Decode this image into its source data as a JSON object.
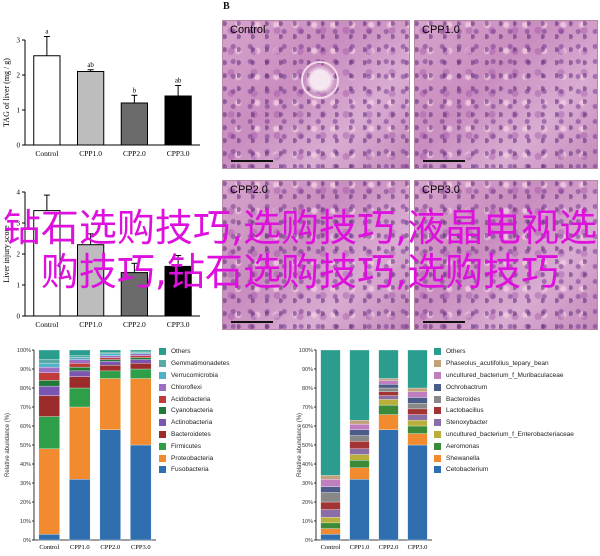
{
  "panel_labels": {
    "b": "B"
  },
  "micro_titles": [
    "Control",
    "CPP1.0",
    "CPP2.0",
    "CPP3.0"
  ],
  "overlay_text": "钻石选购技巧,选购技巧,液晶电视选购技巧,钻石选购技巧,选购技巧",
  "colors": {
    "overlay": "#dd10dd",
    "taxa": {
      "Others": "#2a9d8f",
      "Gemmatimonadetes": "#5aa9a4",
      "Verrucomicrobia": "#4fb3c8",
      "Chloroflexi": "#9d6ec4",
      "Acidobacteria": "#c23b3b",
      "Cyanobacteria": "#1f7a3a",
      "Actinobacteria": "#7a56b0",
      "Bacteroidetes": "#9b2c2c",
      "Firmicutes": "#2e9e48",
      "Proteobacteria": "#f28a30",
      "Fusobacteria": "#2f6fb0",
      "Phascolarctobacterium": "#36a08d",
      "Phaseolus acutifolius tepary bean": "#c3a17a",
      "uncultured Muribaculaceae": "#bf7fbf",
      "Ochrobactrum": "#4c5c8a",
      "Lactobacillus": "#a33434",
      "Stenoxybacter": "#8a6ea8",
      "uncultured Enterobacteriaceae": "#b8b03a",
      "Aeromonas": "#3a8a3a",
      "Shewanella": "#f28a30",
      "Cetobacterium": "#2f6fb0"
    }
  },
  "chart_data": [
    {
      "type": "bar",
      "panel": "A-top",
      "ylabel": "TAG of liver (mg / g)",
      "categories": [
        "Control",
        "CPP1.0",
        "CPP2.0",
        "CPP3.0"
      ],
      "values": [
        2.55,
        2.1,
        1.2,
        1.4
      ],
      "errors": [
        0.55,
        0.05,
        0.22,
        0.3
      ],
      "sig_labels": [
        "a",
        "ab",
        "b",
        "ab"
      ],
      "bar_fills": [
        "#ffffff",
        "#bdbdbd",
        "#6b6b6b",
        "#000000"
      ],
      "ylim": [
        0,
        3
      ],
      "yticks": [
        "0",
        "1",
        "2",
        "3"
      ]
    },
    {
      "type": "bar",
      "panel": "A-bottom",
      "ylabel": "Liver injury score",
      "categories": [
        "Control",
        "CPP1.0",
        "CPP2.0",
        "CPP3.0"
      ],
      "values": [
        3.4,
        2.3,
        1.4,
        1.6
      ],
      "errors": [
        0.5,
        0.35,
        0.3,
        0.35
      ],
      "bar_fills": [
        "#ffffff",
        "#bdbdbd",
        "#6b6b6b",
        "#000000"
      ],
      "ylim": [
        0,
        4
      ],
      "yticks": [
        "0",
        "1",
        "2",
        "3",
        "4"
      ]
    },
    {
      "type": "bar",
      "stacked": true,
      "panel": "C-phylum",
      "ylabel": "Relative abundance (%)",
      "categories": [
        "Control",
        "CPP1.0",
        "CPP2.0",
        "CPP3.0"
      ],
      "ylim": [
        0,
        100
      ],
      "yticks": [
        "0%",
        "10%",
        "20%",
        "30%",
        "40%",
        "50%",
        "60%",
        "70%",
        "80%",
        "90%",
        "100%"
      ],
      "series": [
        {
          "name": "Fusobacteria",
          "values": [
            3,
            32,
            58,
            50
          ]
        },
        {
          "name": "Proteobacteria",
          "values": [
            45,
            38,
            27,
            35
          ]
        },
        {
          "name": "Firmicutes",
          "values": [
            17,
            10,
            4,
            5
          ]
        },
        {
          "name": "Bacteroidetes",
          "values": [
            11,
            6,
            3,
            3
          ]
        },
        {
          "name": "Actinobacteria",
          "values": [
            5,
            3,
            2,
            2
          ]
        },
        {
          "name": "Cyanobacteria",
          "values": [
            3,
            2,
            1,
            1
          ]
        },
        {
          "name": "Acidobacteria",
          "values": [
            4,
            2,
            1,
            1
          ]
        },
        {
          "name": "Chloroflexi",
          "values": [
            3,
            2,
            1,
            1
          ]
        },
        {
          "name": "Verrucomicrobia",
          "values": [
            2,
            1,
            1,
            0.5
          ]
        },
        {
          "name": "Gemmatimonadetes",
          "values": [
            2,
            1,
            0.5,
            0.5
          ]
        },
        {
          "name": "Others",
          "values": [
            5,
            3,
            1.5,
            1
          ]
        }
      ]
    },
    {
      "type": "bar",
      "stacked": true,
      "panel": "C-genus",
      "ylabel": "Relative abundance (%)",
      "categories": [
        "Control",
        "CPP1.0",
        "CPP2.0",
        "CPP3.0"
      ],
      "ylim": [
        0,
        100
      ],
      "yticks": [
        "0%",
        "10%",
        "20%",
        "30%",
        "40%",
        "50%",
        "60%",
        "70%",
        "80%",
        "90%",
        "100%"
      ],
      "series": [
        {
          "name": "Cetobacterium",
          "values": [
            3,
            32,
            58,
            50
          ]
        },
        {
          "name": "Shewanella",
          "values": [
            3,
            6,
            8,
            6
          ]
        },
        {
          "name": "Aeromonas",
          "values": [
            3,
            4,
            5,
            4
          ]
        },
        {
          "name": "uncultured_bacterium_f_Enterobacteriaceae",
          "values": [
            3,
            3,
            3,
            3
          ]
        },
        {
          "name": "Stenoxybacter",
          "values": [
            4,
            3,
            2,
            3
          ]
        },
        {
          "name": "Lactobacillus",
          "values": [
            4,
            4,
            2,
            3
          ]
        },
        {
          "name": "Bacteroides",
          "values": [
            5,
            3,
            2,
            3
          ]
        },
        {
          "name": "Ochrobactrum",
          "values": [
            3,
            3,
            2,
            3
          ]
        },
        {
          "name": "uncultured_bacterium_f_Muribaculaceae",
          "values": [
            4,
            3,
            2,
            3
          ]
        },
        {
          "name": "Phaseolus_acutifolius_tepary_bean",
          "values": [
            2,
            2,
            1,
            2
          ]
        },
        {
          "name": "Others",
          "values": [
            66,
            37,
            15,
            20
          ]
        }
      ]
    }
  ]
}
